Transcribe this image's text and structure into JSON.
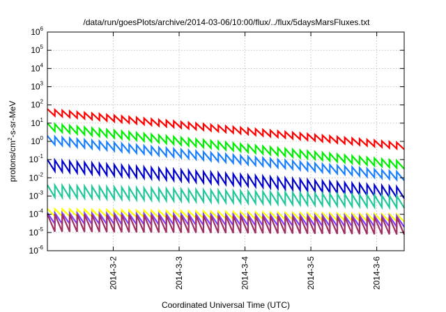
{
  "chart_data": {
    "type": "line",
    "title": "/data/run/goesPlots/archive/2014-03-06/10:00/flux/../flux/5daysMarsFluxes.txt",
    "xlabel": "Coordinated Universal Time (UTC)",
    "ylabel": "protons/cm2-s-sr-MeV",
    "ylabel_parts": {
      "pre": "protons/cm",
      "sup": "2",
      "post": "-s-sr-MeV"
    },
    "x_unit": "days",
    "xlim": [
      "2014-03-01T00:00",
      "2014-03-06T10:00"
    ],
    "y_scale": "log",
    "ylim": [
      1e-06,
      1000000.0
    ],
    "y_ticks": [
      {
        "value": 1e-06,
        "base": "10",
        "exp": "-6"
      },
      {
        "value": 1e-05,
        "base": "10",
        "exp": "-5"
      },
      {
        "value": 0.0001,
        "base": "10",
        "exp": "-4"
      },
      {
        "value": 0.001,
        "base": "10",
        "exp": "-3"
      },
      {
        "value": 0.01,
        "base": "10",
        "exp": "-2"
      },
      {
        "value": 0.1,
        "base": "10",
        "exp": "-1"
      },
      {
        "value": 1,
        "base": "10",
        "exp": "0"
      },
      {
        "value": 10,
        "base": "10",
        "exp": "1"
      },
      {
        "value": 100,
        "base": "10",
        "exp": "2"
      },
      {
        "value": 1000,
        "base": "10",
        "exp": "3"
      },
      {
        "value": 10000,
        "base": "10",
        "exp": "4"
      },
      {
        "value": 100000,
        "base": "10",
        "exp": "5"
      },
      {
        "value": 1000000,
        "base": "10",
        "exp": "6"
      }
    ],
    "x_ticks": [
      {
        "label": "2014-3-2",
        "value": "2014-03-02T00:00"
      },
      {
        "label": "2014-3-3",
        "value": "2014-03-03T00:00"
      },
      {
        "label": "2014-3-4",
        "value": "2014-03-04T00:00"
      },
      {
        "label": "2014-3-5",
        "value": "2014-03-05T00:00"
      },
      {
        "label": "2014-3-6",
        "value": "2014-03-06T00:00"
      }
    ],
    "grid": true,
    "sawtooth_teeth": 48,
    "series": [
      {
        "color": "#ff0000",
        "start": 60,
        "end": 0.8,
        "ratio": 2.2
      },
      {
        "color": "#00ee00",
        "start": 10,
        "end": 0.08,
        "ratio": 2.6
      },
      {
        "color": "#1a7fff",
        "start": 2.0,
        "end": 0.02,
        "ratio": 2.8
      },
      {
        "color": "#0000cc",
        "start": 0.1,
        "end": 0.003,
        "ratio": 4.0
      },
      {
        "color": "#22c89a",
        "start": 0.004,
        "end": 0.001,
        "ratio": 4.5
      },
      {
        "color": "#ffff00",
        "start": 0.0002,
        "end": 0.0001,
        "ratio": 2.5
      },
      {
        "color": "#7f3fff",
        "start": 0.00012,
        "end": 8e-05,
        "ratio": 4.0
      },
      {
        "color": "#a03060",
        "start": 0.0001,
        "end": 7e-05,
        "ratio": 9.0
      }
    ]
  }
}
